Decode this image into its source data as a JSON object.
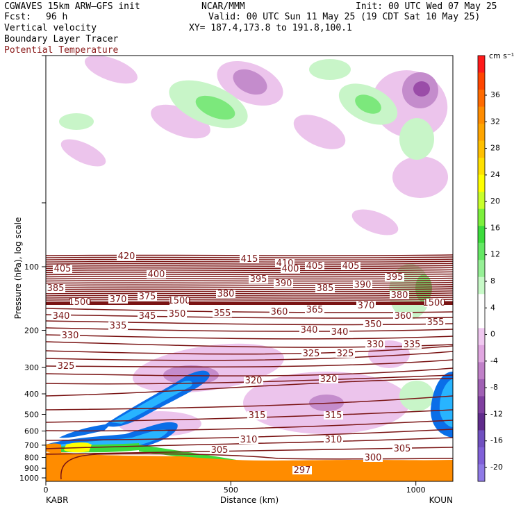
{
  "header": {
    "model": "CGWAVES 15km ARW—GFS init",
    "org": "NCAR/MMM",
    "init": "Init: 00 UTC Wed 07 May 25",
    "fcst_label": "Fcst:",
    "fcst_value": "96 h",
    "valid": "Valid: 00 UTC Sun 11 May 25 (19 CDT Sat 10 May 25)",
    "field1": "Vertical velocity",
    "xy": "XY= 187.4,173.8 to 191.8,100.1",
    "field2": "Boundary Layer Tracer",
    "field3": "Potential Temperature"
  },
  "colors": {
    "theta_contour": "#7a1414",
    "terrain": "#ff8c00",
    "accent_text": "#8b1a1a"
  },
  "chart_data": {
    "type": "heatmap",
    "ylabel": "Pressure (hPa), log scale",
    "xlabel": "Distance (km)",
    "x_ticks": [
      "0",
      "500",
      "1000"
    ],
    "x_endpoints": [
      "KABR",
      "KOUN"
    ],
    "y_ticks": [
      "100",
      "200",
      "300",
      "400",
      "500",
      "600",
      "700",
      "800",
      "900",
      "1000"
    ],
    "colorbar": {
      "unit": "cm s⁻¹",
      "labels": [
        "36",
        "32",
        "28",
        "24",
        "20",
        "16",
        "12",
        "8",
        "4",
        "0",
        "-4",
        "-8",
        "-12",
        "-16",
        "-20"
      ],
      "colors": [
        "#ff1a1a",
        "#ff4500",
        "#ff6a00",
        "#ff8c00",
        "#ffa500",
        "#ffc000",
        "#ffe000",
        "#ffff00",
        "#c8ff2a",
        "#7cf03c",
        "#3cdc3c",
        "#64e864",
        "#96f096",
        "#c8fac8",
        "#ffffff",
        "#ffffff",
        "#f0c8f0",
        "#e0a6e0",
        "#c080c8",
        "#a060b4",
        "#8040a0",
        "#602c8c",
        "#7050c0",
        "#8060d8",
        "#8f7ae6"
      ]
    },
    "theta_labels": [
      "420",
      "415",
      "410",
      "405",
      "405",
      "405",
      "400",
      "400",
      "395",
      "395",
      "390",
      "390",
      "385",
      "385",
      "380",
      "380",
      "375",
      "370",
      "370",
      "365",
      "360",
      "360",
      "355",
      "355",
      "350",
      "350",
      "345",
      "340",
      "340",
      "340",
      "335",
      "335",
      "330",
      "330",
      "325",
      "325",
      "325",
      "320",
      "320",
      "315",
      "315",
      "310",
      "310",
      "305",
      "305",
      "300",
      "297",
      "1500",
      "1500",
      "1500"
    ]
  }
}
